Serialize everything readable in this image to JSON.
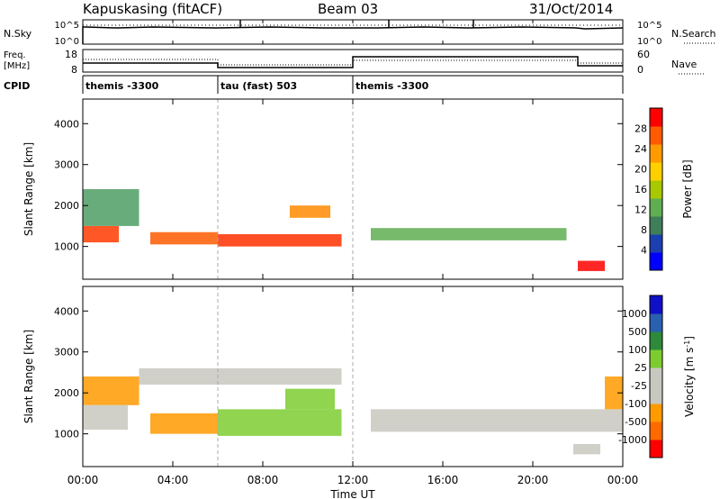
{
  "header": {
    "station": "Kapuskasing (fitACF)",
    "beam": "Beam 03",
    "date": "31/Oct/2014"
  },
  "nsky_panel": {
    "label": "N.Sky",
    "right_label": "N.Search",
    "left_ticks": [
      "10^5",
      "10^0"
    ],
    "right_ticks": [
      "10^5",
      "10^0"
    ]
  },
  "freq_panel": {
    "label_line1": "Freq.",
    "label_line2": "[MHz]",
    "right_label": "Nave",
    "left_ticks": [
      "18",
      "8"
    ],
    "right_ticks": [
      "60",
      "0"
    ]
  },
  "cpid_panel": {
    "label": "CPID",
    "segments": [
      {
        "name": "themis -3300",
        "start_h": 0,
        "end_h": 6
      },
      {
        "name": "tau (fast) 503",
        "start_h": 6,
        "end_h": 12
      },
      {
        "name": "themis -3300",
        "start_h": 12,
        "end_h": 24
      }
    ]
  },
  "chart_data": [
    {
      "type": "heatmap",
      "name": "power",
      "ylabel": "Slant Range [km]",
      "x_range_h": [
        0,
        24
      ],
      "ylim": [
        200,
        4600
      ],
      "y_ticks": [
        "1000",
        "2000",
        "3000",
        "4000"
      ],
      "colorbar": {
        "label": "Power [dB]",
        "ticks": [
          "28",
          "24",
          "20",
          "16",
          "12",
          "8",
          "4"
        ],
        "colors": [
          "#0000ff",
          "#1c3fb0",
          "#3e7f5a",
          "#5fae52",
          "#a8c800",
          "#ffd000",
          "#ff9a00",
          "#ff5a00",
          "#ff0000"
        ]
      },
      "bands": [
        {
          "start_h": 0.0,
          "end_h": 1.6,
          "lo": 1100,
          "hi": 1500,
          "color": "#ff3a00"
        },
        {
          "start_h": 0.0,
          "end_h": 2.5,
          "lo": 1500,
          "hi": 2400,
          "color": "#4f9e64"
        },
        {
          "start_h": 3.0,
          "end_h": 6.0,
          "lo": 1050,
          "hi": 1350,
          "color": "#ff5a00"
        },
        {
          "start_h": 6.0,
          "end_h": 11.5,
          "lo": 1000,
          "hi": 1300,
          "color": "#ff3000"
        },
        {
          "start_h": 9.2,
          "end_h": 11.0,
          "lo": 1700,
          "hi": 2000,
          "color": "#ff8a00"
        },
        {
          "start_h": 12.8,
          "end_h": 21.5,
          "lo": 1150,
          "hi": 1450,
          "color": "#5fae52"
        },
        {
          "start_h": 22.0,
          "end_h": 23.2,
          "lo": 400,
          "hi": 650,
          "color": "#ff0000"
        }
      ]
    },
    {
      "type": "heatmap",
      "name": "velocity",
      "ylabel": "Slant Range [km]",
      "x_range_h": [
        0,
        24
      ],
      "ylim": [
        200,
        4600
      ],
      "y_ticks": [
        "1000",
        "2000",
        "3000",
        "4000"
      ],
      "xlabel": "Time UT",
      "x_ticks": [
        "00:00",
        "04:00",
        "08:00",
        "12:00",
        "16:00",
        "20:00",
        "00:00"
      ],
      "colorbar": {
        "label": "Velocity [m s",
        "label_sup": "-1",
        "label_close": "]",
        "ticks": [
          "1000",
          "500",
          "100",
          "25",
          "-25",
          "-100",
          "-500",
          "-1000"
        ],
        "colors": [
          "#ff0000",
          "#ff6a00",
          "#ff9a00",
          "#c8c8c0",
          "#c8c8c0",
          "#7ccc30",
          "#2e8a3a",
          "#2a60b0",
          "#1010c8"
        ]
      },
      "bands": [
        {
          "start_h": 0.0,
          "end_h": 2.5,
          "lo": 1700,
          "hi": 2400,
          "color": "#ff9a00"
        },
        {
          "start_h": 0.0,
          "end_h": 2.0,
          "lo": 1100,
          "hi": 1700,
          "color": "#c8c8c0"
        },
        {
          "start_h": 2.5,
          "end_h": 11.5,
          "lo": 2200,
          "hi": 2600,
          "color": "#c8c8c0"
        },
        {
          "start_h": 3.0,
          "end_h": 6.0,
          "lo": 1000,
          "hi": 1500,
          "color": "#ff9a00"
        },
        {
          "start_h": 6.0,
          "end_h": 11.5,
          "lo": 950,
          "hi": 1600,
          "color": "#7ccc30"
        },
        {
          "start_h": 9.0,
          "end_h": 11.2,
          "lo": 1600,
          "hi": 2100,
          "color": "#7ccc30"
        },
        {
          "start_h": 12.8,
          "end_h": 24.0,
          "lo": 1050,
          "hi": 1600,
          "color": "#c8c8c0"
        },
        {
          "start_h": 21.8,
          "end_h": 23.0,
          "lo": 500,
          "hi": 750,
          "color": "#c8c8c0"
        },
        {
          "start_h": 23.2,
          "end_h": 24.0,
          "lo": 1600,
          "hi": 2400,
          "color": "#ff9a00"
        }
      ]
    }
  ]
}
